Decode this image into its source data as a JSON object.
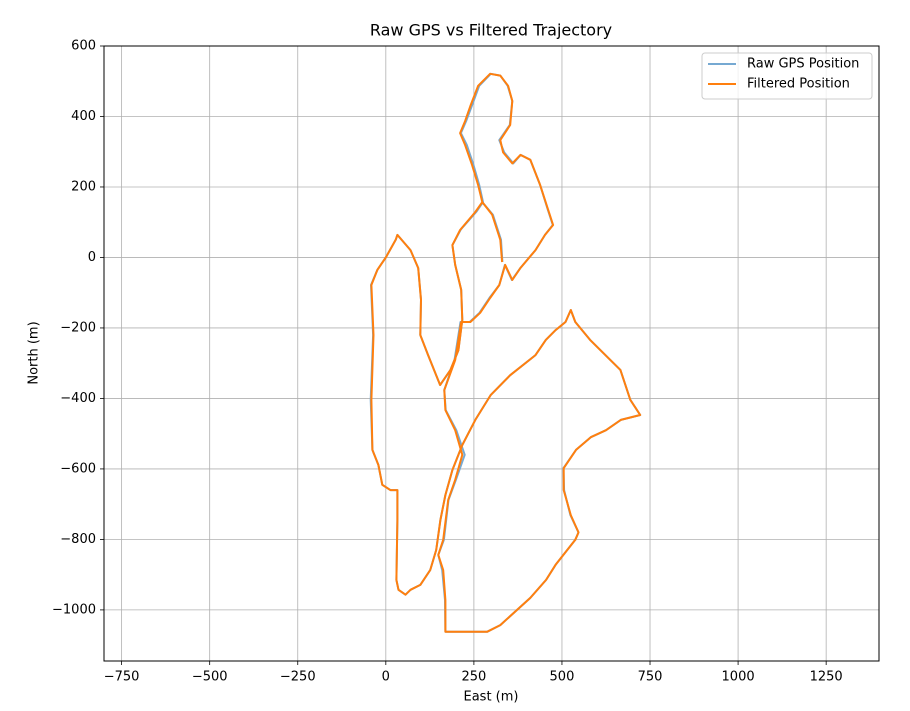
{
  "chart_data": {
    "type": "line",
    "title": "Raw GPS vs Filtered Trajectory",
    "xlabel": "East (m)",
    "ylabel": "North (m)",
    "xlim": [
      -800,
      1400
    ],
    "ylim": [
      -1145,
      600
    ],
    "xticks": [
      {
        "value": -750,
        "label": "−750"
      },
      {
        "value": -500,
        "label": "−500"
      },
      {
        "value": -250,
        "label": "−250"
      },
      0,
      250,
      500,
      750,
      1000,
      1250
    ],
    "yticks": [
      {
        "value": -1000,
        "label": "−1000"
      },
      {
        "value": -800,
        "label": "−800"
      },
      {
        "value": -600,
        "label": "−600"
      },
      {
        "value": -400,
        "label": "−400"
      },
      {
        "value": -200,
        "label": "−200"
      },
      0,
      200,
      400,
      600
    ],
    "grid": true,
    "legend": "upper right",
    "series": [
      {
        "name": "Raw GPS Position",
        "color": "#76a9d2",
        "x": [
          0,
          28,
          33,
          70,
          92,
          100,
          98,
          120,
          154,
          183,
          206,
          217,
          214,
          197,
          189,
          213,
          258,
          276,
          265,
          249,
          230,
          213,
          228,
          244,
          265,
          298,
          325,
          346,
          359,
          352,
          322,
          336,
          362,
          383,
          410,
          438,
          460,
          474,
          452,
          425,
          382,
          358,
          338,
          322,
          294,
          266,
          238,
          212,
          195,
          166,
          170,
          200,
          224,
          199,
          178,
          165,
          149,
          160,
          168,
          169,
          288,
          325,
          410,
          455,
          482,
          538,
          547,
          524,
          506,
          504,
          540,
          582,
          625,
          667,
          722,
          694,
          666,
          580,
          538,
          525,
          510,
          482,
          454,
          425,
          353,
          298,
          254,
          217,
          189,
          169,
          155,
          143,
          126,
          98,
          70,
          56,
          36,
          30,
          33,
          33,
          13,
          -10,
          -21,
          -38,
          -43,
          -36,
          -42,
          -24,
          0,
          null,
          274,
          304,
          327,
          331
        ],
        "values": [
          0,
          50,
          64,
          21,
          -30,
          -120,
          -220,
          -277,
          -362,
          -320,
          -263,
          -177,
          -92,
          -21,
          35,
          80,
          131,
          157,
          206,
          262,
          319,
          353,
          387,
          430,
          487,
          521,
          516,
          487,
          444,
          376,
          333,
          298,
          267,
          291,
          277,
          206,
          135,
          92,
          64,
          21,
          -30,
          -64,
          -21,
          -78,
          -115,
          -157,
          -183,
          -183,
          -291,
          -376,
          -433,
          -490,
          -560,
          -631,
          -688,
          -801,
          -844,
          -887,
          -972,
          -1062,
          -1062,
          -1043,
          -966,
          -915,
          -872,
          -801,
          -780,
          -731,
          -660,
          -598,
          -546,
          -510,
          -490,
          -461,
          -447,
          -404,
          -319,
          -234,
          -183,
          -149,
          -183,
          -206,
          -234,
          -277,
          -334,
          -390,
          -461,
          -532,
          -603,
          -674,
          -745,
          -830,
          -887,
          -929,
          -943,
          -957,
          -943,
          -915,
          -745,
          -660,
          -660,
          -645,
          -589,
          -546,
          -404,
          -220,
          -78,
          -35,
          0,
          null,
          157,
          121,
          50,
          -13
        ]
      },
      {
        "name": "Filtered Position",
        "color": "#ff7f0e",
        "x": [
          0,
          28,
          33,
          70,
          92,
          100,
          98,
          120,
          154,
          183,
          206,
          217,
          214,
          197,
          189,
          211,
          254,
          274,
          262,
          245,
          225,
          211,
          225,
          240,
          262,
          296,
          325,
          347,
          359,
          353,
          325,
          333,
          359,
          382,
          410,
          438,
          461,
          475,
          452,
          425,
          382,
          359,
          339,
          322,
          296,
          268,
          240,
          214,
          197,
          166,
          169,
          197,
          217,
          197,
          177,
          163,
          149,
          163,
          169,
          169,
          288,
          325,
          410,
          455,
          482,
          538,
          547,
          525,
          505,
          505,
          540,
          582,
          625,
          667,
          722,
          694,
          666,
          580,
          538,
          525,
          510,
          482,
          454,
          425,
          353,
          298,
          254,
          217,
          189,
          169,
          155,
          143,
          126,
          98,
          70,
          56,
          36,
          30,
          33,
          33,
          13,
          -10,
          -21,
          -38,
          -41,
          -35,
          -41,
          -24,
          0,
          null,
          274,
          302,
          325,
          330
        ],
        "values": [
          0,
          50,
          64,
          21,
          -30,
          -120,
          -220,
          -277,
          -362,
          -320,
          -263,
          -177,
          -92,
          -21,
          35,
          78,
          129,
          157,
          206,
          262,
          319,
          353,
          387,
          430,
          487,
          521,
          516,
          487,
          444,
          376,
          333,
          298,
          267,
          291,
          277,
          206,
          135,
          92,
          64,
          21,
          -30,
          -64,
          -21,
          -78,
          -115,
          -157,
          -183,
          -183,
          -291,
          -376,
          -433,
          -490,
          -560,
          -631,
          -688,
          -801,
          -844,
          -887,
          -972,
          -1062,
          -1062,
          -1043,
          -966,
          -915,
          -872,
          -801,
          -780,
          -731,
          -660,
          -598,
          -546,
          -510,
          -490,
          -461,
          -447,
          -404,
          -319,
          -234,
          -183,
          -149,
          -183,
          -206,
          -234,
          -277,
          -334,
          -390,
          -461,
          -532,
          -603,
          -674,
          -745,
          -830,
          -887,
          -929,
          -943,
          -957,
          -943,
          -915,
          -745,
          -660,
          -660,
          -645,
          -589,
          -546,
          -404,
          -220,
          -78,
          -35,
          0,
          null,
          157,
          121,
          50,
          -13
        ]
      }
    ]
  }
}
